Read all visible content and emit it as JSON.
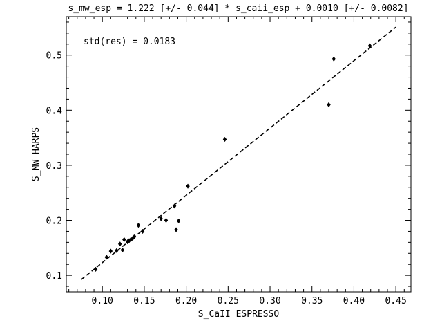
{
  "chart_data": {
    "type": "scatter",
    "title": "s_mw_esp = 1.222 [+/- 0.044] * s_caii_esp + 0.0010 [+/- 0.0082]",
    "xlabel": "S_CaII ESPRESSO",
    "ylabel": "S_MW HARPS",
    "xlim": [
      0.057,
      0.468
    ],
    "ylim": [
      0.07,
      0.57
    ],
    "xticks": [
      0.1,
      0.15,
      0.2,
      0.25,
      0.3,
      0.35,
      0.4,
      0.45
    ],
    "xtick_labels": [
      "0.10",
      "0.15",
      "0.20",
      "0.25",
      "0.30",
      "0.35",
      "0.40",
      "0.45"
    ],
    "yticks": [
      0.1,
      0.2,
      0.3,
      0.4,
      0.5
    ],
    "ytick_labels": [
      "0.1",
      "0.2",
      "0.3",
      "0.4",
      "0.5"
    ],
    "annotation": "std(res) = 0.0183",
    "grid": false,
    "marker": "diamond",
    "marker_color": "#000000",
    "fit_line": {
      "slope": 1.222,
      "intercept": 0.001,
      "x_start": 0.075,
      "x_end": 0.45,
      "style": "dashed",
      "color": "#000000"
    },
    "points": [
      {
        "x": 0.092,
        "y": 0.111
      },
      {
        "x": 0.105,
        "y": 0.133
      },
      {
        "x": 0.11,
        "y": 0.144
      },
      {
        "x": 0.117,
        "y": 0.145
      },
      {
        "x": 0.121,
        "y": 0.157
      },
      {
        "x": 0.124,
        "y": 0.146
      },
      {
        "x": 0.126,
        "y": 0.165
      },
      {
        "x": 0.13,
        "y": 0.161
      },
      {
        "x": 0.132,
        "y": 0.163
      },
      {
        "x": 0.134,
        "y": 0.165
      },
      {
        "x": 0.136,
        "y": 0.167
      },
      {
        "x": 0.138,
        "y": 0.17
      },
      {
        "x": 0.143,
        "y": 0.191
      },
      {
        "x": 0.148,
        "y": 0.18
      },
      {
        "x": 0.17,
        "y": 0.203
      },
      {
        "x": 0.176,
        "y": 0.2
      },
      {
        "x": 0.186,
        "y": 0.226
      },
      {
        "x": 0.188,
        "y": 0.183
      },
      {
        "x": 0.191,
        "y": 0.199
      },
      {
        "x": 0.202,
        "y": 0.262
      },
      {
        "x": 0.246,
        "y": 0.347
      },
      {
        "x": 0.37,
        "y": 0.41
      },
      {
        "x": 0.376,
        "y": 0.493
      },
      {
        "x": 0.419,
        "y": 0.517
      }
    ]
  }
}
